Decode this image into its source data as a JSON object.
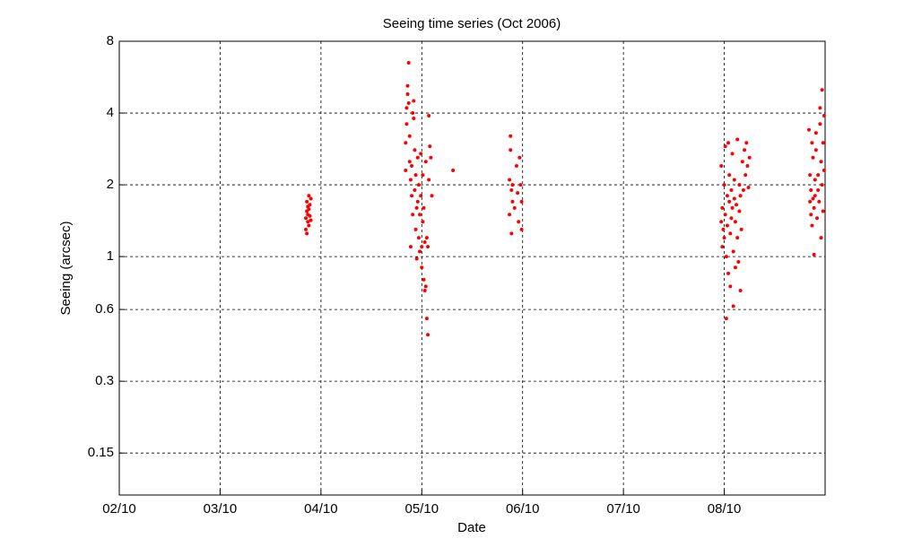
{
  "chart_data": {
    "type": "scatter",
    "title": "Seeing time series (Oct 2006)",
    "x_label": "Date",
    "y_label": "Seeing (arcsec)",
    "xlim": [
      2,
      9
    ],
    "xticks": [
      {
        "value": 2,
        "label": "02/10"
      },
      {
        "value": 3,
        "label": "03/10"
      },
      {
        "value": 4,
        "label": "04/10"
      },
      {
        "value": 5,
        "label": "05/10"
      },
      {
        "value": 6,
        "label": "06/10"
      },
      {
        "value": 7,
        "label": "07/10"
      },
      {
        "value": 8,
        "label": "08/10"
      }
    ],
    "ylim": [
      0.1,
      8
    ],
    "yticks": [
      0.15,
      0.3,
      0.6,
      1,
      2,
      4,
      8
    ],
    "y_scale": "log",
    "grid": true,
    "series": [
      {
        "color": "#ff0000",
        "x": [
          3.85,
          3.85,
          3.86,
          3.86,
          3.87,
          3.87,
          3.87,
          3.88,
          3.88,
          3.89,
          3.89,
          3.9,
          3.9,
          3.86,
          3.88,
          4.84,
          4.84,
          4.85,
          4.85,
          4.86,
          4.86,
          4.87,
          4.87,
          4.88,
          4.88,
          4.89,
          4.89,
          4.9,
          4.9,
          4.91,
          4.91,
          4.92,
          4.92,
          4.93,
          4.93,
          4.94,
          4.94,
          4.95,
          4.95,
          4.96,
          4.96,
          4.97,
          4.97,
          4.98,
          4.98,
          4.99,
          4.99,
          5.0,
          5.0,
          5.01,
          5.01,
          5.02,
          5.02,
          5.03,
          5.03,
          5.04,
          5.04,
          5.05,
          5.05,
          5.06,
          5.06,
          5.07,
          5.07,
          5.08,
          5.09,
          5.1,
          5.31,
          5.87,
          5.87,
          5.88,
          5.88,
          5.89,
          5.89,
          5.9,
          5.9,
          5.92,
          5.94,
          5.95,
          5.96,
          5.97,
          5.98,
          5.99,
          5.99,
          7.97,
          7.97,
          7.98,
          7.98,
          7.99,
          8.0,
          8.0,
          8.01,
          8.01,
          8.02,
          8.02,
          8.03,
          8.03,
          8.04,
          8.04,
          8.05,
          8.05,
          8.06,
          8.06,
          8.07,
          8.07,
          8.08,
          8.08,
          8.09,
          8.09,
          8.1,
          8.1,
          8.11,
          8.11,
          8.12,
          8.13,
          8.13,
          8.14,
          8.15,
          8.15,
          8.16,
          8.16,
          8.17,
          8.18,
          8.19,
          8.2,
          8.21,
          8.22,
          8.23,
          8.24,
          8.25,
          8.84,
          8.85,
          8.85,
          8.86,
          8.86,
          8.87,
          8.87,
          8.88,
          8.88,
          8.89,
          8.89,
          8.9,
          8.9,
          8.91,
          8.91,
          8.92,
          8.93,
          8.93,
          8.94,
          8.95,
          8.95,
          8.96,
          8.96,
          8.97,
          8.97,
          8.98,
          8.98,
          8.99,
          8.99
        ],
        "values": [
          1.3,
          1.45,
          1.55,
          1.7,
          1.5,
          1.4,
          1.62,
          1.8,
          1.35,
          1.48,
          1.65,
          1.42,
          1.75,
          1.25,
          1.58,
          2.3,
          3.0,
          3.6,
          4.2,
          4.8,
          5.2,
          6.5,
          4.4,
          2.5,
          3.2,
          2.1,
          1.1,
          1.8,
          2.4,
          1.5,
          4.0,
          3.8,
          4.5,
          2.8,
          1.9,
          2.2,
          1.3,
          0.98,
          1.6,
          2.6,
          1.7,
          1.2,
          2.0,
          1.05,
          1.5,
          2.7,
          1.8,
          1.1,
          0.9,
          1.4,
          2.2,
          0.8,
          1.6,
          0.72,
          1.15,
          0.75,
          2.5,
          1.2,
          0.55,
          0.47,
          1.1,
          3.9,
          2.1,
          2.9,
          2.6,
          1.8,
          2.3,
          1.5,
          2.1,
          3.2,
          2.8,
          1.9,
          1.25,
          1.7,
          2.0,
          1.6,
          2.4,
          1.85,
          1.4,
          2.6,
          2.0,
          1.3,
          1.7,
          1.4,
          2.4,
          1.6,
          1.1,
          1.3,
          2.0,
          1.2,
          2.9,
          1.5,
          1.0,
          0.55,
          1.8,
          1.35,
          3.0,
          0.85,
          1.7,
          2.2,
          1.25,
          0.75,
          1.9,
          1.45,
          1.6,
          2.7,
          1.05,
          0.62,
          1.75,
          2.1,
          1.4,
          0.9,
          1.65,
          3.1,
          1.2,
          0.95,
          1.55,
          2.0,
          0.72,
          1.8,
          1.3,
          2.5,
          1.9,
          2.8,
          2.2,
          3.0,
          2.4,
          1.95,
          2.6,
          3.4,
          1.7,
          2.2,
          1.5,
          1.9,
          3.0,
          1.35,
          1.75,
          2.6,
          1.6,
          1.02,
          2.1,
          1.8,
          3.3,
          2.8,
          1.45,
          2.2,
          1.9,
          1.7,
          4.2,
          3.6,
          2.5,
          1.2,
          5.0,
          2.0,
          3.0,
          1.55,
          2.3,
          3.9
        ]
      }
    ]
  }
}
